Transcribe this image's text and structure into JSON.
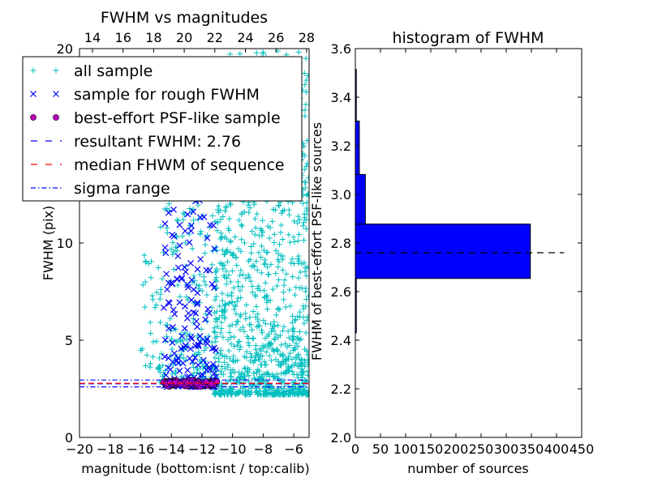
{
  "chart_data": [
    {
      "type": "scatter",
      "title": "FWHM vs magnitudes",
      "xlabel": "magnitude (bottom:isnt / top:calib)",
      "ylabel": "FWHM (pix)",
      "xlim": [
        -20,
        -5
      ],
      "ylim": [
        0,
        20
      ],
      "x_ticks": [
        -20,
        -18,
        -16,
        -14,
        -12,
        -10,
        -8,
        -6
      ],
      "x_tick_labels": [
        "−20",
        "−18",
        "−16",
        "−14",
        "−12",
        "−10",
        "−8",
        "−6"
      ],
      "y_ticks": [
        0,
        5,
        10,
        15,
        20
      ],
      "y_tick_labels": [
        "0",
        "5",
        "10",
        "15",
        "20"
      ],
      "top_x_tick_labels": [
        "14",
        "16",
        "18",
        "20",
        "22",
        "24",
        "26",
        "28"
      ],
      "grid": false,
      "legend_placement": "top-left",
      "legend": [
        {
          "label": "all sample",
          "marker": "+",
          "color": "#00bfbf"
        },
        {
          "label": "sample for rough FWHM",
          "marker": "x",
          "color": "#0000ff"
        },
        {
          "label": "best-effort PSF-like sample",
          "marker": "o",
          "color": "#bf00bf"
        },
        {
          "label": "resultant FWHM: 2.76",
          "linestyle": "dashed",
          "color": "#0000ff"
        },
        {
          "label": "median FHWM of sequence",
          "linestyle": "dashed",
          "color": "#ff0000"
        },
        {
          "label": "sigma range",
          "linestyle": "dashdot",
          "color": "#0000ff"
        }
      ],
      "series": [
        {
          "name": "all sample",
          "marker": "+",
          "color": "#00bfbf",
          "clusters": [
            {
              "x_range": [
                -14.8,
                -11.0
              ],
              "y_range": [
                2.7,
                14.5
              ],
              "count": 260
            },
            {
              "x_range": [
                -11.2,
                -5.0
              ],
              "y_range": [
                2.2,
                19.9
              ],
              "count": 1100
            },
            {
              "x_range": [
                -16.0,
                -14.8
              ],
              "y_range": [
                3.5,
                9.5
              ],
              "count": 30
            }
          ]
        },
        {
          "name": "sample for rough FWHM",
          "marker": "x",
          "color": "#0000ff",
          "clusters": [
            {
              "x_range": [
                -14.5,
                -11.0
              ],
              "y_range": [
                2.6,
                12.8
              ],
              "count": 170
            }
          ]
        },
        {
          "name": "best-effort PSF-like sample",
          "marker": "o",
          "color": "#bf00bf",
          "clusters": [
            {
              "x_range": [
                -14.5,
                -11.0
              ],
              "y_range": [
                2.6,
                2.95
              ],
              "count": 150
            }
          ]
        }
      ],
      "lines": [
        {
          "name": "resultant FWHM: 2.76",
          "y": 2.76,
          "color": "#0000ff",
          "linestyle": "dashed"
        },
        {
          "name": "median FHWM of sequence",
          "y": 2.78,
          "color": "#ff0000",
          "linestyle": "dashed"
        },
        {
          "name": "sigma range",
          "y": 2.95,
          "color": "#0000ff",
          "linestyle": "dashdot"
        },
        {
          "name": "sigma range",
          "y": 2.6,
          "color": "#0000ff",
          "linestyle": "dashdot"
        }
      ]
    },
    {
      "type": "bar",
      "orientation": "horizontal",
      "title": "histogram of FWHM",
      "xlabel": "number of sources",
      "ylabel": "FWHM of best-effort PSF-like sources",
      "xlim": [
        0,
        450
      ],
      "ylim": [
        2.0,
        3.6
      ],
      "x_ticks": [
        0,
        50,
        100,
        150,
        200,
        250,
        300,
        350,
        400,
        450
      ],
      "x_tick_labels": [
        "0",
        "50",
        "100",
        "150",
        "200",
        "250",
        "300",
        "350",
        "400",
        "450"
      ],
      "y_ticks": [
        2.0,
        2.2,
        2.4,
        2.6,
        2.8,
        3.0,
        3.2,
        3.4,
        3.6
      ],
      "y_tick_labels": [
        "2.0",
        "2.2",
        "2.4",
        "2.6",
        "2.8",
        "3.0",
        "3.2",
        "3.4",
        "3.6"
      ],
      "grid": false,
      "bin_edges": [
        2.43,
        2.654,
        2.878,
        3.082,
        3.302,
        3.514
      ],
      "values": [
        2,
        348,
        20,
        8,
        2
      ],
      "bar_color": "#0000ff",
      "reference_line": {
        "y": 2.76,
        "x_max": 415,
        "linestyle": "dashed",
        "color": "#000000"
      }
    }
  ]
}
